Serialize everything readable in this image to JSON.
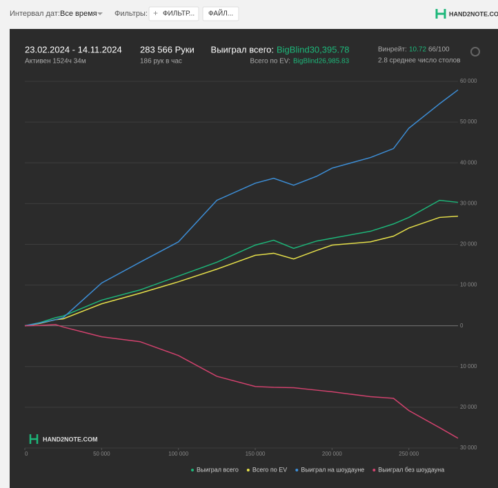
{
  "toolbar": {
    "date_label": "Интервал дат:",
    "date_value": "Все время",
    "filters_label": "Фильтры:",
    "filter_button": "ФИЛЬТР...",
    "file_button": "ФАЙЛ...",
    "logo": "HAND2NOTE.COM"
  },
  "stats": {
    "date_range": "23.02.2024 - 14.11.2024",
    "active": "Активен 1524ч 34м",
    "hands": "283 566 Руки",
    "hands_per_hour": "186 рук в час",
    "won_label": "Выиграл всего:",
    "won_value": "BigBlind30,395.78",
    "ev_label": "Всего по EV:",
    "ev_value": "BigBlind26,985.83",
    "winrate_label": "Винрейт:",
    "winrate_value": "10.72",
    "winrate_unit": "66/100",
    "tables": "2.8 среднее число столов"
  },
  "watermark": "HAND2NOTE.COM",
  "chart_data": {
    "type": "line",
    "x": [
      0,
      10000,
      20000,
      25000,
      50000,
      75000,
      100000,
      125000,
      150000,
      162000,
      175000,
      190000,
      200000,
      225000,
      240000,
      250000,
      270000,
      282000
    ],
    "series": [
      {
        "name": "Выиграл всего",
        "color": "#1db77a",
        "values": [
          0,
          800,
          2000,
          2400,
          6300,
          8800,
          12200,
          15600,
          19800,
          21000,
          19000,
          20800,
          21500,
          23200,
          25000,
          26600,
          30800,
          30300
        ]
      },
      {
        "name": "Всего по EV",
        "color": "#e6e04a",
        "values": [
          0,
          600,
          1500,
          1700,
          5400,
          8000,
          10800,
          13900,
          17300,
          17800,
          16400,
          18500,
          19800,
          20600,
          22000,
          24000,
          26600,
          26900
        ]
      },
      {
        "name": "Выиграл на шоудауне",
        "color": "#3d8fd8",
        "values": [
          0,
          700,
          1500,
          2000,
          10500,
          15600,
          20600,
          30800,
          35000,
          36200,
          34500,
          36700,
          38700,
          41300,
          43500,
          48500,
          54500,
          57900
        ]
      },
      {
        "name": "Выиграл без шоудауна",
        "color": "#d2426e",
        "values": [
          0,
          100,
          300,
          -300,
          -2700,
          -3900,
          -7300,
          -12400,
          -14900,
          -15100,
          -15200,
          -15800,
          -16200,
          -17400,
          -17800,
          -20800,
          -25000,
          -27600
        ]
      }
    ],
    "xlim": [
      0,
      282000
    ],
    "ylim": [
      -30000,
      60000
    ],
    "xticks": [
      0,
      {
        "value": 50000,
        "label": "50 000"
      },
      {
        "value": 100000,
        "label": "100 000"
      },
      {
        "value": 150000,
        "label": "150 000"
      },
      {
        "value": 200000,
        "label": "200 000"
      },
      {
        "value": 250000,
        "label": "250 000"
      }
    ],
    "yticks": [
      {
        "value": 60000,
        "label": "60 000"
      },
      {
        "value": 50000,
        "label": "50 000"
      },
      {
        "value": 40000,
        "label": "40 000"
      },
      {
        "value": 30000,
        "label": "30 000"
      },
      {
        "value": 20000,
        "label": "20 000"
      },
      {
        "value": 10000,
        "label": "10 000"
      },
      0,
      {
        "value": -10000,
        "label": "10 000"
      },
      {
        "value": -20000,
        "label": "20 000"
      },
      {
        "value": -30000,
        "label": "30 000"
      }
    ],
    "grid": true,
    "legend": "bottom"
  }
}
